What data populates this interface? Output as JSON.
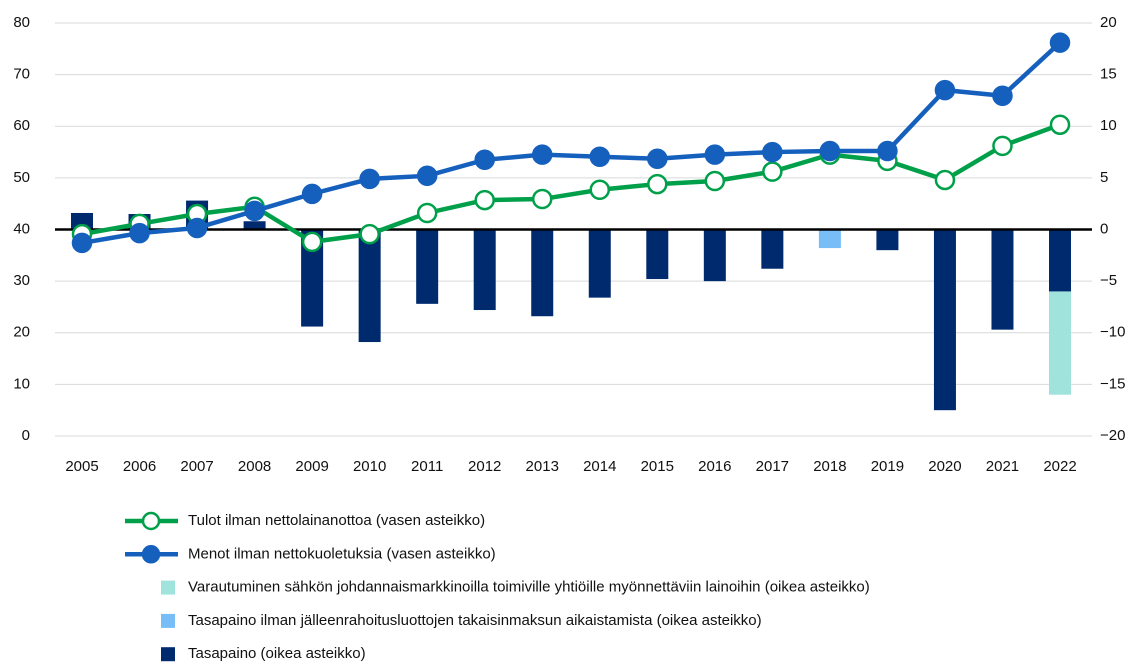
{
  "chart_data": {
    "type": "combo",
    "categories": [
      "2005",
      "2006",
      "2007",
      "2008",
      "2009",
      "2010",
      "2011",
      "2012",
      "2013",
      "2014",
      "2015",
      "2016",
      "2017",
      "2018",
      "2019",
      "2020",
      "2021",
      "2022"
    ],
    "series": [
      {
        "name": "Tulot ilman nettolainanottoa (vasen asteikko)",
        "type": "line",
        "marker": "open",
        "color": "#00a04a",
        "values": [
          39.1,
          41.1,
          43.0,
          44.4,
          37.6,
          39.1,
          43.2,
          45.7,
          45.9,
          47.7,
          48.8,
          49.4,
          51.2,
          54.5,
          53.3,
          49.6,
          56.2,
          60.3
        ]
      },
      {
        "name": "Menot ilman nettokuoletuksia (vasen asteikko)",
        "type": "line",
        "marker": "filled",
        "color": "#1560bd",
        "values": [
          37.4,
          39.3,
          40.3,
          43.6,
          46.9,
          49.8,
          50.4,
          53.5,
          54.5,
          54.1,
          53.7,
          54.5,
          55.0,
          55.2,
          55.2,
          67.0,
          65.9,
          76.2
        ]
      },
      {
        "name": "Varautuminen sähkön johdannaismarkkinoilla toimiville yhtiöille myönnettäviin lainoihin (oikea asteikko)",
        "type": "bar",
        "axis": "y2",
        "color": "#a0e2dc",
        "values": [
          null,
          null,
          null,
          null,
          null,
          null,
          null,
          null,
          null,
          null,
          null,
          null,
          null,
          null,
          null,
          null,
          null,
          -10.0
        ]
      },
      {
        "name": "Tasapaino ilman jälleenrahoitusluottojen takaisinmaksun aikaistamista (oikea asteikko)",
        "type": "bar",
        "axis": "y2",
        "color": "#78bdf5",
        "values": [
          null,
          null,
          null,
          null,
          null,
          null,
          null,
          null,
          null,
          null,
          null,
          null,
          null,
          -1.8,
          null,
          null,
          null,
          null
        ]
      },
      {
        "name": "Tasapaino (oikea asteikko)",
        "type": "bar",
        "axis": "y2",
        "color": "#002a6e",
        "values": [
          1.6,
          1.5,
          2.8,
          0.8,
          -9.4,
          -10.9,
          -7.2,
          -7.8,
          -8.4,
          -6.6,
          -4.8,
          -5.0,
          -3.8,
          null,
          -2.0,
          -17.5,
          -9.7,
          -6.0
        ]
      }
    ],
    "ylim": [
      0,
      80
    ],
    "yticks": [
      0,
      10,
      20,
      30,
      40,
      50,
      60,
      70,
      80
    ],
    "y2lim": [
      -20,
      20
    ],
    "y2ticks": [
      {
        "value": -20,
        "label": "−20"
      },
      {
        "value": -15,
        "label": "−15"
      },
      {
        "value": -10,
        "label": "−10"
      },
      {
        "value": -5,
        "label": "−5"
      },
      0,
      5,
      10,
      15,
      20
    ],
    "grid": true
  }
}
